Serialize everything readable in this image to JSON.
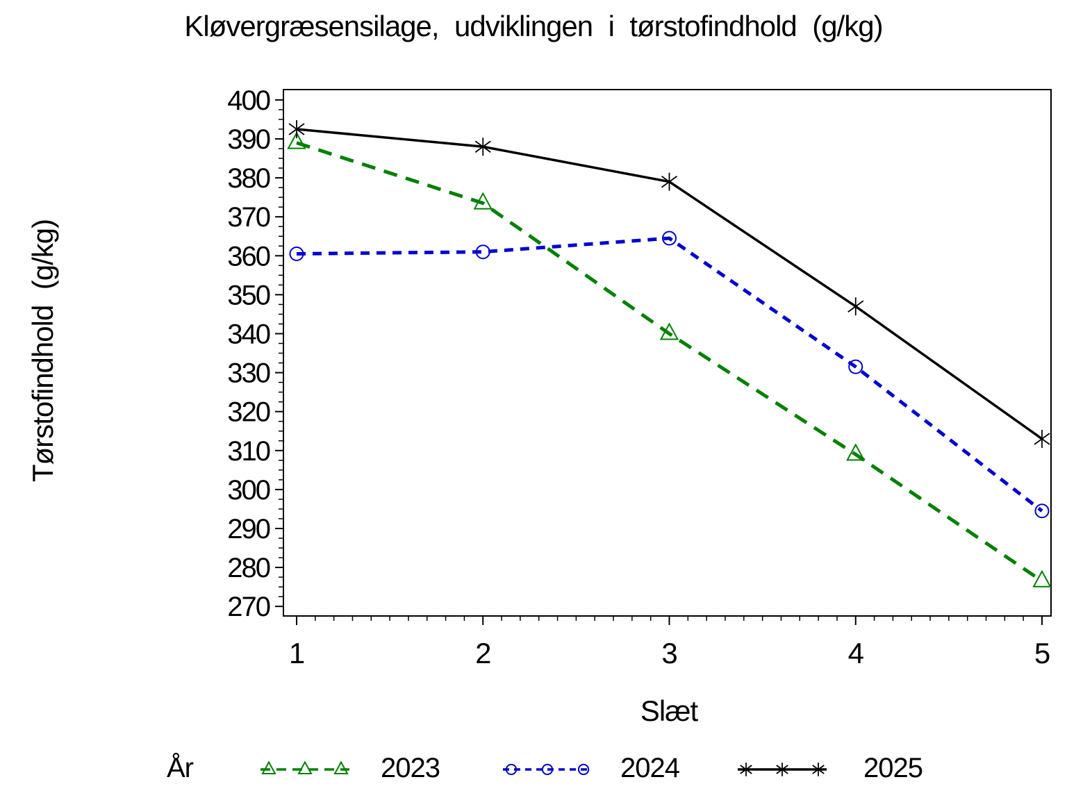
{
  "chart_data": {
    "type": "line",
    "title": "Kløvergræsensilage, udviklingen i tørstofindhold (g/kg)",
    "xlabel": "Slæt",
    "ylabel": "Tørstofindhold (g/kg)",
    "legend_title": "År",
    "legend_position": "bottom",
    "grid": false,
    "x": [
      1,
      2,
      3,
      4,
      5
    ],
    "x_tick_labels": [
      "1",
      "2",
      "3",
      "4",
      "5"
    ],
    "x_minor_step": 0.1,
    "y_ticks": [
      270,
      280,
      290,
      300,
      310,
      320,
      330,
      340,
      350,
      360,
      370,
      380,
      390,
      400
    ],
    "y_minor_step": 2.5,
    "ylim": [
      267.5,
      402.5
    ],
    "series": [
      {
        "name": "2023",
        "color": "#008000",
        "marker": "triangle-open",
        "line_style": "dashed",
        "dash": "20 13",
        "values": [
          389,
          373.5,
          340,
          309,
          276.5
        ]
      },
      {
        "name": "2024",
        "color": "#0000d0",
        "marker": "circle-open",
        "line_style": "dashed",
        "dash": "13 10",
        "values": [
          360.5,
          361,
          364.5,
          331.5,
          294.5
        ]
      },
      {
        "name": "2025",
        "color": "#000000",
        "marker": "star",
        "line_style": "solid",
        "dash": "",
        "values": [
          392.5,
          388,
          379,
          347,
          313
        ]
      }
    ]
  }
}
